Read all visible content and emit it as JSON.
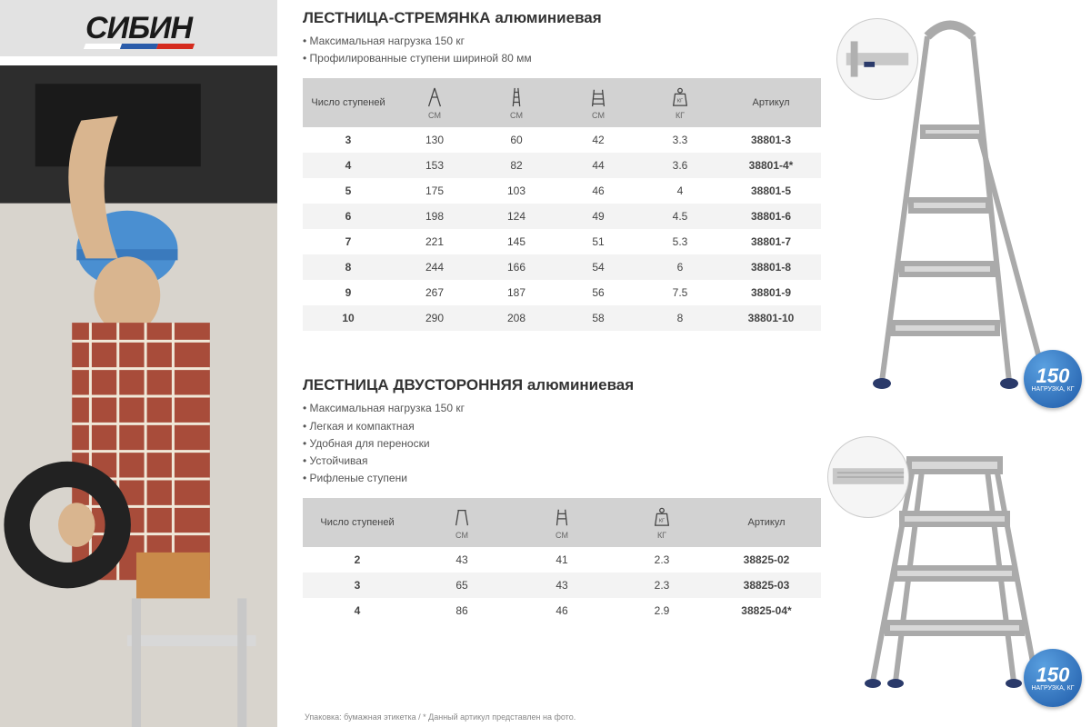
{
  "brand": "СИБИН",
  "stripe_colors": [
    "#ffffff",
    "#2a5caa",
    "#d52b1e"
  ],
  "footnote": "Упаковка: бумажная этикетка   /   * Данный артикул представлен на фото.",
  "badge": {
    "value": "150",
    "label": "НАГРУЗКА, КГ"
  },
  "section1": {
    "title_bold": "ЛЕСТНИЦА-СТРЕМЯНКА",
    "title_rest": " алюминиевая",
    "bullets": [
      "Максимальная нагрузка 150 кг",
      "Профилированные ступени шириной 80 мм"
    ],
    "table": {
      "cols": [
        {
          "label": "Число ступеней",
          "sub": ""
        },
        {
          "label": "",
          "sub": "СМ",
          "icon": "open"
        },
        {
          "label": "",
          "sub": "СМ",
          "icon": "closed"
        },
        {
          "label": "",
          "sub": "СМ",
          "icon": "width"
        },
        {
          "label": "",
          "sub": "КГ",
          "icon": "weight"
        },
        {
          "label": "Артикул",
          "sub": ""
        }
      ],
      "rows": [
        [
          "3",
          "130",
          "60",
          "42",
          "3.3",
          "38801-3"
        ],
        [
          "4",
          "153",
          "82",
          "44",
          "3.6",
          "38801-4*"
        ],
        [
          "5",
          "175",
          "103",
          "46",
          "4",
          "38801-5"
        ],
        [
          "6",
          "198",
          "124",
          "49",
          "4.5",
          "38801-6"
        ],
        [
          "7",
          "221",
          "145",
          "51",
          "5.3",
          "38801-7"
        ],
        [
          "8",
          "244",
          "166",
          "54",
          "6",
          "38801-8"
        ],
        [
          "9",
          "267",
          "187",
          "56",
          "7.5",
          "38801-9"
        ],
        [
          "10",
          "290",
          "208",
          "58",
          "8",
          "38801-10"
        ]
      ]
    }
  },
  "section2": {
    "title_bold": "ЛЕСТНИЦА ДВУСТОРОННЯЯ",
    "title_rest": " алюминиевая",
    "bullets": [
      "Максимальная нагрузка 150 кг",
      "Легкая и компактная",
      "Удобная для переноски",
      "Устойчивая",
      "Рифленые ступени"
    ],
    "table": {
      "cols": [
        {
          "label": "Число ступеней",
          "sub": ""
        },
        {
          "label": "",
          "sub": "СМ",
          "icon": "step-open"
        },
        {
          "label": "",
          "sub": "СМ",
          "icon": "step-width"
        },
        {
          "label": "",
          "sub": "КГ",
          "icon": "weight"
        },
        {
          "label": "Артикул",
          "sub": ""
        }
      ],
      "rows": [
        [
          "2",
          "43",
          "41",
          "2.3",
          "38825-02"
        ],
        [
          "3",
          "65",
          "43",
          "2.3",
          "38825-03"
        ],
        [
          "4",
          "86",
          "46",
          "2.9",
          "38825-04*"
        ]
      ]
    }
  }
}
